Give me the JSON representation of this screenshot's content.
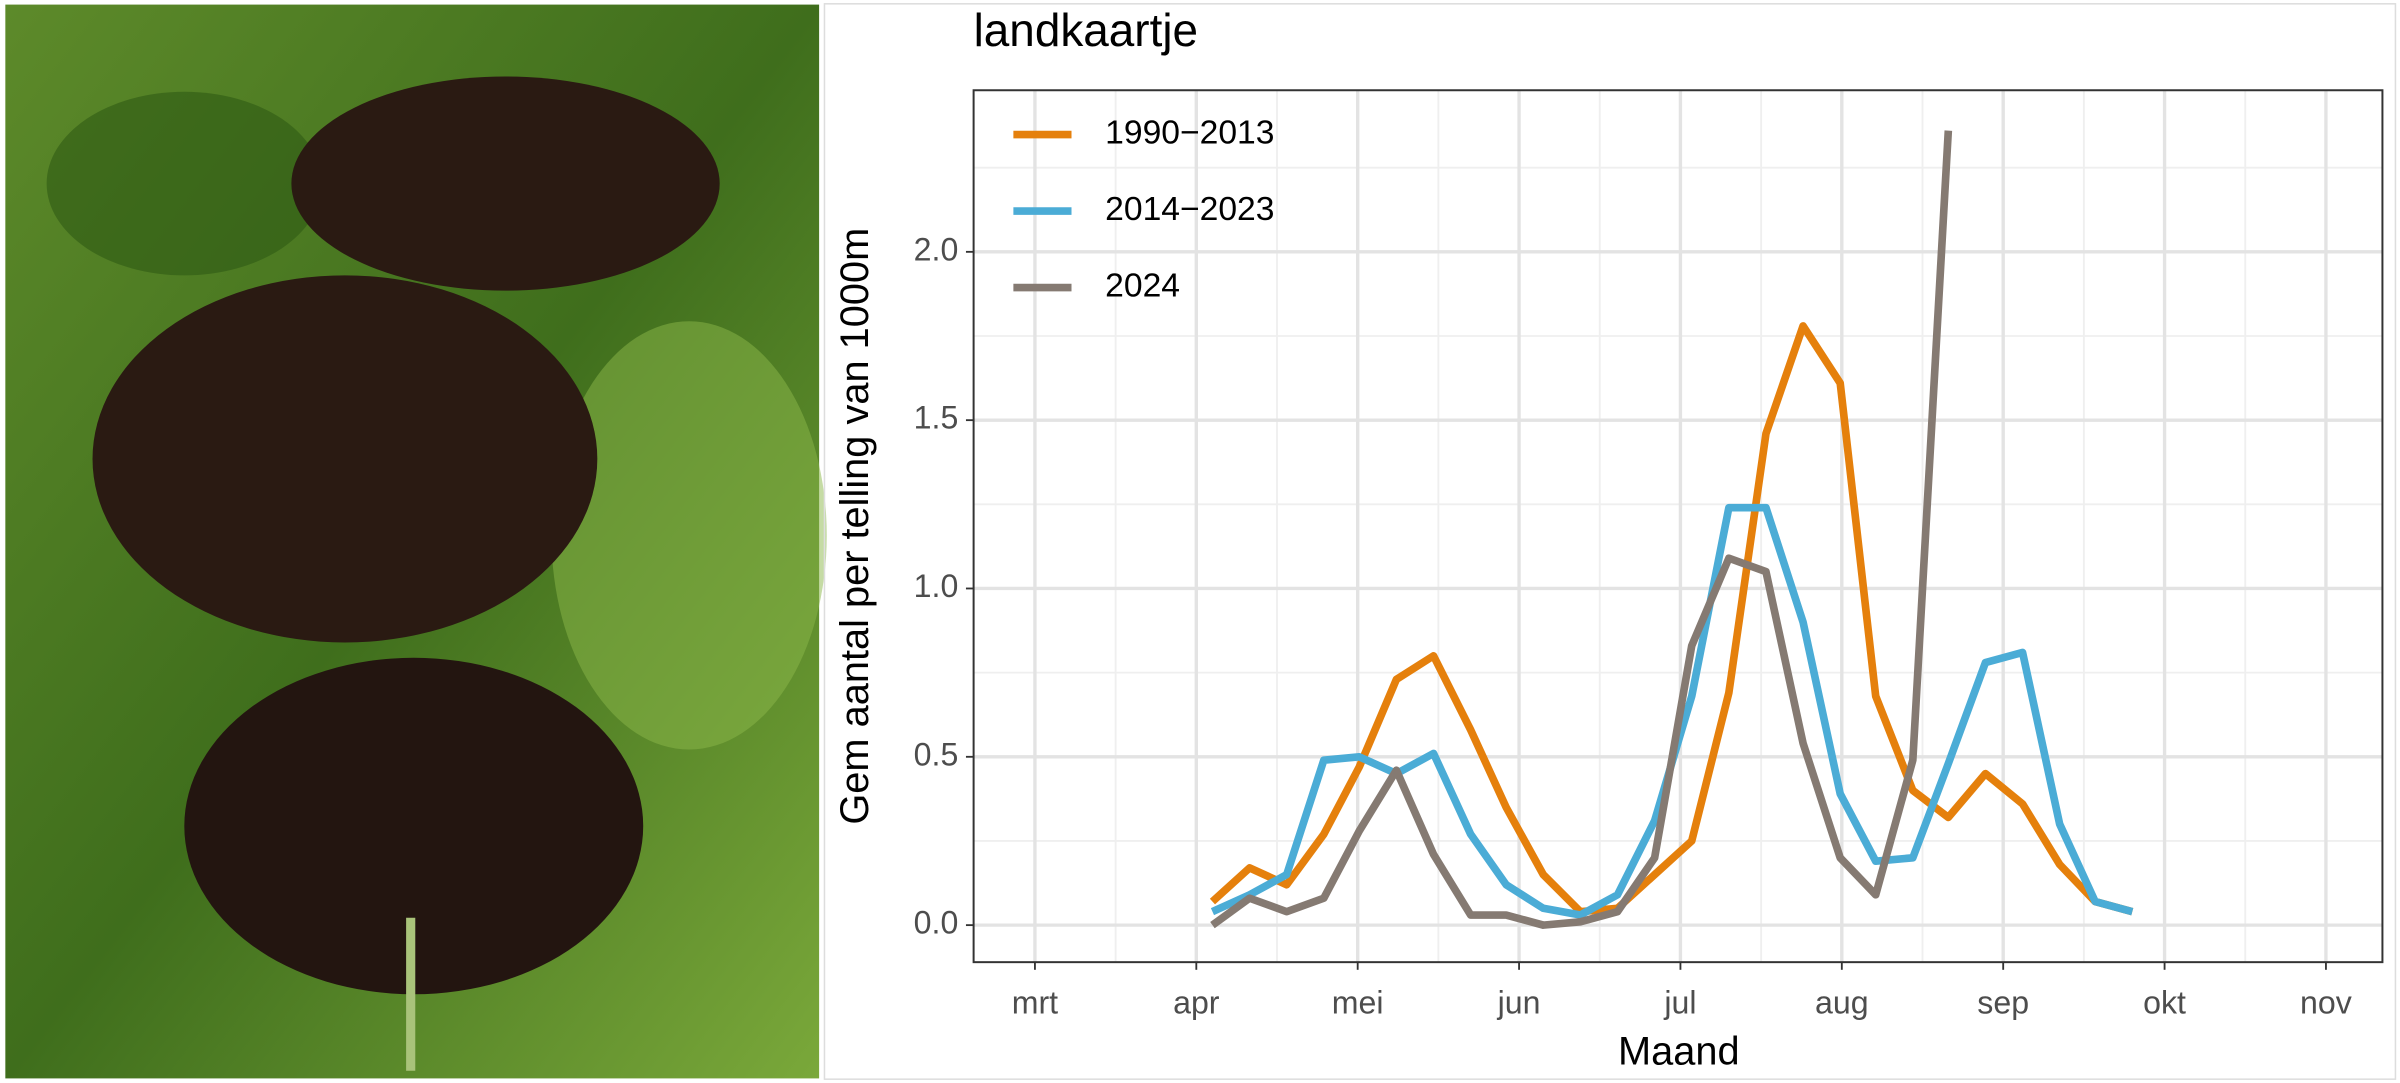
{
  "chart_data": {
    "type": "line",
    "title": "landkaartje",
    "x_label": "Maand",
    "y_label": "Gem aantal per telling van 1000m",
    "x": [
      4.1,
      4.33,
      4.56,
      4.79,
      5.01,
      5.24,
      5.47,
      5.7,
      5.92,
      6.15,
      6.38,
      6.61,
      6.84,
      7.07,
      7.3,
      7.53,
      7.76,
      7.99,
      8.21,
      8.44,
      8.66,
      8.89,
      9.12,
      9.35,
      9.57,
      9.8
    ],
    "series": [
      {
        "name": "1990−2013",
        "color": "#e5800c",
        "values": [
          0.07,
          0.17,
          0.12,
          0.27,
          0.47,
          0.73,
          0.8,
          0.58,
          0.35,
          0.15,
          0.04,
          0.05,
          0.15,
          0.25,
          0.69,
          1.46,
          1.78,
          1.61,
          0.68,
          0.4,
          0.32,
          0.45,
          0.36,
          0.18,
          0.07,
          0.04
        ]
      },
      {
        "name": "2014−2023",
        "color": "#4bacd6",
        "values": [
          0.04,
          0.09,
          0.15,
          0.49,
          0.5,
          0.45,
          0.51,
          0.27,
          0.12,
          0.05,
          0.03,
          0.09,
          0.31,
          0.68,
          1.24,
          1.24,
          0.9,
          0.39,
          0.19,
          0.2,
          0.48,
          0.78,
          0.81,
          0.3,
          0.07,
          0.04
        ]
      },
      {
        "name": "2024",
        "color": "#857a72",
        "values": [
          0.0,
          0.08,
          0.04,
          0.08,
          0.28,
          0.46,
          0.21,
          0.03,
          0.03,
          0.0,
          0.01,
          0.04,
          0.2,
          0.83,
          1.09,
          1.05,
          0.54,
          0.2,
          0.09,
          0.49,
          2.36,
          null,
          null,
          null,
          null,
          null
        ]
      }
    ],
    "xlim": [
      2.62,
      11.35
    ],
    "xticks": [
      {
        "value": 3,
        "label": "mrt"
      },
      {
        "value": 4,
        "label": "apr"
      },
      {
        "value": 5,
        "label": "mei"
      },
      {
        "value": 6,
        "label": "jun"
      },
      {
        "value": 7,
        "label": "jul"
      },
      {
        "value": 8,
        "label": "aug"
      },
      {
        "value": 9,
        "label": "sep"
      },
      {
        "value": 10,
        "label": "okt"
      },
      {
        "value": 11,
        "label": "nov"
      }
    ],
    "ylim": [
      -0.11,
      2.48
    ],
    "yticks": [
      {
        "value": 0,
        "label": "0.0"
      },
      {
        "value": 0.5,
        "label": "0.5"
      },
      {
        "value": 1,
        "label": "1.0"
      },
      {
        "value": 1.5,
        "label": "1.5"
      },
      {
        "value": 2,
        "label": "2.0"
      }
    ],
    "grid": true,
    "legend": "top-left"
  }
}
